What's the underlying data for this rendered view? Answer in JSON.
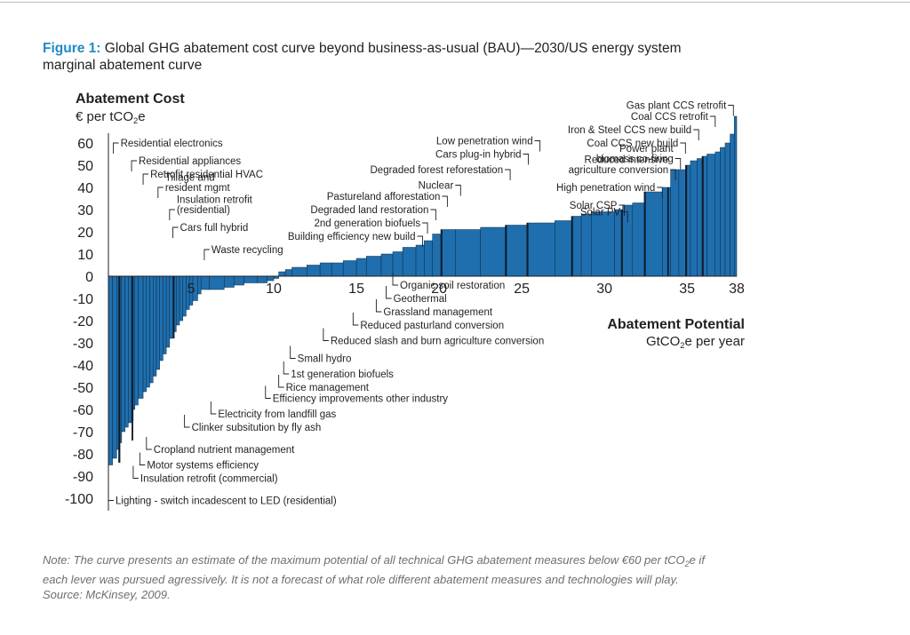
{
  "figure": {
    "label": "Figure 1:",
    "title_line1": "Global GHG abatement cost curve beyond business-as-usual (BAU)—2030/US energy system",
    "title_line2": "marginal abatement curve"
  },
  "note": {
    "line1": "Note: The curve presents an estimate of the maximum potential of all technical GHG abatement measures below €60 per tCO",
    "line1_sub": "2",
    "line1_end": "e if",
    "line2": "each lever was pursued agressively. It is not a forecast of what role different abatement measures and technologies will play.",
    "line3": "Source: McKinsey, 2009."
  },
  "colors": {
    "bar": "#1f6fae",
    "bar_dark": "#0f1d2b",
    "accent": "#1f8bc5",
    "text": "#231f20",
    "note": "#6d6e71"
  },
  "chart_data": {
    "type": "bar",
    "subtype": "marginal abatement cost curve (variable-width bars)",
    "ylabel": "Abatement Cost",
    "yunit": "€ per tCO2e",
    "xlabel": "Abatement Potential",
    "xunit": "GtCO2e per year",
    "xticks": [
      5,
      10,
      15,
      20,
      25,
      30,
      35,
      38
    ],
    "yticks": [
      60,
      50,
      40,
      30,
      20,
      10,
      0,
      -10,
      -20,
      -30,
      -40,
      -50,
      -60,
      -70,
      -80,
      -90,
      -100
    ],
    "xlim": [
      0,
      38
    ],
    "ylim": [
      -100,
      70
    ],
    "segments": [
      [
        0.0,
        0.25,
        -85
      ],
      [
        0.25,
        0.5,
        -82
      ],
      [
        0.5,
        0.65,
        -78
      ],
      [
        0.65,
        0.8,
        -75
      ],
      [
        0.8,
        1.0,
        -70
      ],
      [
        1.0,
        1.2,
        -68
      ],
      [
        1.2,
        1.4,
        -66
      ],
      [
        1.4,
        1.5,
        -65
      ],
      [
        1.5,
        1.6,
        -60
      ],
      [
        1.6,
        1.8,
        -58
      ],
      [
        1.8,
        2.1,
        -55
      ],
      [
        2.1,
        2.3,
        -52
      ],
      [
        2.3,
        2.5,
        -50
      ],
      [
        2.5,
        2.7,
        -48
      ],
      [
        2.7,
        2.9,
        -45
      ],
      [
        2.9,
        3.1,
        -42
      ],
      [
        3.1,
        3.3,
        -38
      ],
      [
        3.3,
        3.5,
        -35
      ],
      [
        3.5,
        3.7,
        -32
      ],
      [
        3.7,
        3.9,
        -28
      ],
      [
        3.9,
        4.1,
        -25
      ],
      [
        4.1,
        4.3,
        -22
      ],
      [
        4.3,
        4.5,
        -20
      ],
      [
        4.5,
        4.7,
        -18
      ],
      [
        4.7,
        4.9,
        -15
      ],
      [
        4.9,
        5.1,
        -13
      ],
      [
        5.1,
        5.4,
        -11
      ],
      [
        5.4,
        5.6,
        -8
      ],
      [
        5.6,
        6.1,
        -6
      ],
      [
        6.1,
        7.0,
        -6
      ],
      [
        7.0,
        7.6,
        -5
      ],
      [
        7.6,
        8.2,
        -4
      ],
      [
        8.2,
        9.0,
        -3
      ],
      [
        9.0,
        9.6,
        -3
      ],
      [
        9.6,
        10.0,
        -2
      ],
      [
        10.0,
        10.3,
        -1
      ],
      [
        10.3,
        10.7,
        2
      ],
      [
        10.7,
        11.1,
        3
      ],
      [
        11.1,
        12.0,
        4
      ],
      [
        12.0,
        12.8,
        5
      ],
      [
        12.8,
        13.5,
        6
      ],
      [
        13.5,
        14.2,
        6
      ],
      [
        14.2,
        15.0,
        7
      ],
      [
        15.0,
        15.6,
        8
      ],
      [
        15.6,
        16.5,
        9
      ],
      [
        16.5,
        17.2,
        10
      ],
      [
        17.2,
        17.8,
        11
      ],
      [
        17.8,
        18.6,
        13
      ],
      [
        18.6,
        19.1,
        14
      ],
      [
        19.1,
        19.6,
        16
      ],
      [
        19.6,
        20.1,
        19
      ],
      [
        20.1,
        21.0,
        21
      ],
      [
        21.0,
        22.5,
        21
      ],
      [
        22.5,
        24.0,
        22
      ],
      [
        24.0,
        25.3,
        23
      ],
      [
        25.3,
        27.0,
        24
      ],
      [
        27.0,
        28.0,
        25
      ],
      [
        28.0,
        28.6,
        27
      ],
      [
        28.6,
        29.2,
        28
      ],
      [
        29.2,
        30.6,
        29
      ],
      [
        30.6,
        31.1,
        30
      ],
      [
        31.1,
        31.7,
        32
      ],
      [
        31.7,
        32.4,
        33
      ],
      [
        32.4,
        33.5,
        38
      ],
      [
        33.5,
        34.0,
        40
      ],
      [
        34.0,
        34.5,
        48
      ],
      [
        34.5,
        34.9,
        48
      ],
      [
        34.9,
        35.2,
        50
      ],
      [
        35.2,
        35.6,
        52
      ],
      [
        35.6,
        35.9,
        53
      ],
      [
        35.9,
        36.2,
        54
      ],
      [
        36.2,
        36.7,
        55
      ],
      [
        36.7,
        37.0,
        56
      ],
      [
        37.0,
        37.3,
        58
      ],
      [
        37.3,
        37.6,
        60
      ],
      [
        37.6,
        37.85,
        64
      ],
      [
        37.85,
        38.0,
        72
      ]
    ],
    "dark_segments": [
      [
        0.6,
        0.72,
        -84
      ],
      [
        1.4,
        1.5,
        -74
      ],
      [
        3.9,
        4.0,
        -28
      ],
      [
        20.1,
        20.2,
        21
      ],
      [
        24.0,
        24.1,
        23
      ],
      [
        25.3,
        25.4,
        24
      ],
      [
        28.0,
        28.1,
        27
      ],
      [
        31.0,
        31.1,
        30
      ],
      [
        32.4,
        32.5,
        38
      ],
      [
        33.8,
        33.9,
        40
      ],
      [
        34.9,
        35.0,
        50
      ],
      [
        35.9,
        36.0,
        54
      ]
    ],
    "annotations": {
      "top_left": [
        {
          "label": "Residential electronics",
          "x": 0.3,
          "y": 60
        },
        {
          "label": "Residential appliances",
          "x": 1.4,
          "y": 52
        },
        {
          "label": "Retrofit residential HVAC",
          "x": 2.1,
          "y": 46
        },
        {
          "label": "Tillage and\nresident mgmt",
          "x": 3.0,
          "y": 40
        },
        {
          "label": "Insulation retrofit\n(residential)",
          "x": 3.7,
          "y": 30
        },
        {
          "label": "Cars full hybrid",
          "x": 3.9,
          "y": 22
        },
        {
          "label": "Waste recycling",
          "x": 5.8,
          "y": 12
        }
      ],
      "bottom": [
        {
          "label": "Lighting - switch incadescent to LED (residential)",
          "x": 0.0,
          "y": -101
        },
        {
          "label": "Insulation retrofit (commercial)",
          "x": 1.5,
          "y": -91
        },
        {
          "label": "Motor systems efficiency",
          "x": 1.9,
          "y": -85
        },
        {
          "label": "Cropland nutrient management",
          "x": 2.3,
          "y": -78
        },
        {
          "label": "Clinker subsitution by fly ash",
          "x": 4.6,
          "y": -68
        },
        {
          "label": "Electricity from landfill gas",
          "x": 6.2,
          "y": -62
        },
        {
          "label": "Efficiency improvements other industry",
          "x": 9.5,
          "y": -55
        },
        {
          "label": "Rice management",
          "x": 10.3,
          "y": -50
        },
        {
          "label": "1st generation biofuels",
          "x": 10.6,
          "y": -44
        },
        {
          "label": "Small hydro",
          "x": 11.0,
          "y": -37
        },
        {
          "label": "Reduced slash and burn agriculture conversion",
          "x": 13.0,
          "y": -29
        },
        {
          "label": "Reduced pasturland conversion",
          "x": 14.8,
          "y": -22
        },
        {
          "label": "Grassland management",
          "x": 16.2,
          "y": -16
        },
        {
          "label": "Geothermal",
          "x": 16.8,
          "y": -10
        },
        {
          "label": "Organic soil restoration",
          "x": 17.2,
          "y": -4
        }
      ],
      "middle_right": [
        {
          "label": "Building efficiency new build",
          "x": 19.0,
          "y": 18
        },
        {
          "label": "2nd generation biofuels",
          "x": 19.3,
          "y": 24
        },
        {
          "label": "Degraded land restoration",
          "x": 19.8,
          "y": 30
        },
        {
          "label": "Pastureland afforestation",
          "x": 20.5,
          "y": 36
        },
        {
          "label": "Nuclear",
          "x": 21.3,
          "y": 41
        },
        {
          "label": "Degraded forest reforestation",
          "x": 24.3,
          "y": 48
        },
        {
          "label": "Cars plug-in hybrid",
          "x": 25.4,
          "y": 55
        },
        {
          "label": "Low penetration wind",
          "x": 26.1,
          "y": 61
        }
      ],
      "top_right": [
        {
          "label": "Solar PV",
          "x": 31.4,
          "y": 29
        },
        {
          "label": "Solar CSP",
          "x": 31.2,
          "y": 32
        },
        {
          "label": "High penetration wind",
          "x": 33.5,
          "y": 40
        },
        {
          "label": "Reduced intensive\nagriculture conversion",
          "x": 34.3,
          "y": 48
        },
        {
          "label": "Power plant\nbiomass co-firing",
          "x": 34.6,
          "y": 53
        },
        {
          "label": "Coal CCS new build",
          "x": 34.9,
          "y": 60
        },
        {
          "label": "Iron & Steel CCS new build",
          "x": 35.7,
          "y": 66
        },
        {
          "label": "Coal CCS retrofit",
          "x": 36.7,
          "y": 72
        },
        {
          "label": "Gas plant CCS retrofit",
          "x": 37.8,
          "y": 77
        }
      ]
    }
  }
}
